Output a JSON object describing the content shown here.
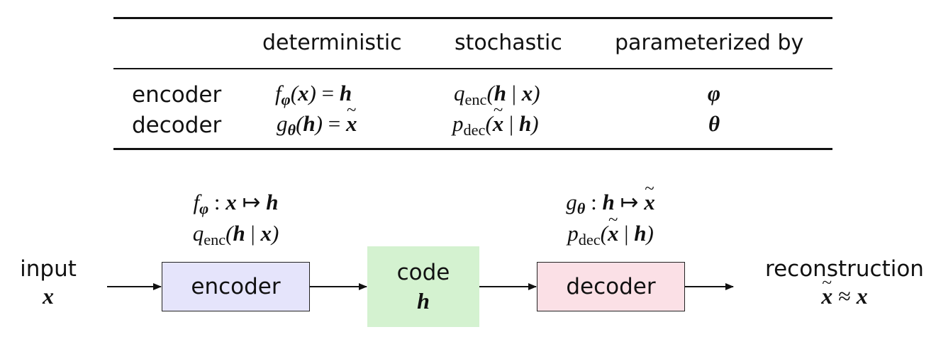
{
  "table": {
    "headers": [
      "deterministic",
      "stochastic",
      "parameterized by"
    ],
    "rows": [
      {
        "label": "encoder"
      },
      {
        "label": "decoder"
      }
    ]
  },
  "diagram": {
    "input_label": "input",
    "encoder_label": "encoder",
    "code_label": "code",
    "decoder_label": "decoder",
    "output_label": "reconstruction"
  },
  "colors": {
    "encoder_fill": "#e5e4fb",
    "code_fill": "#d4f2d0",
    "decoder_fill": "#fbe0e6"
  }
}
